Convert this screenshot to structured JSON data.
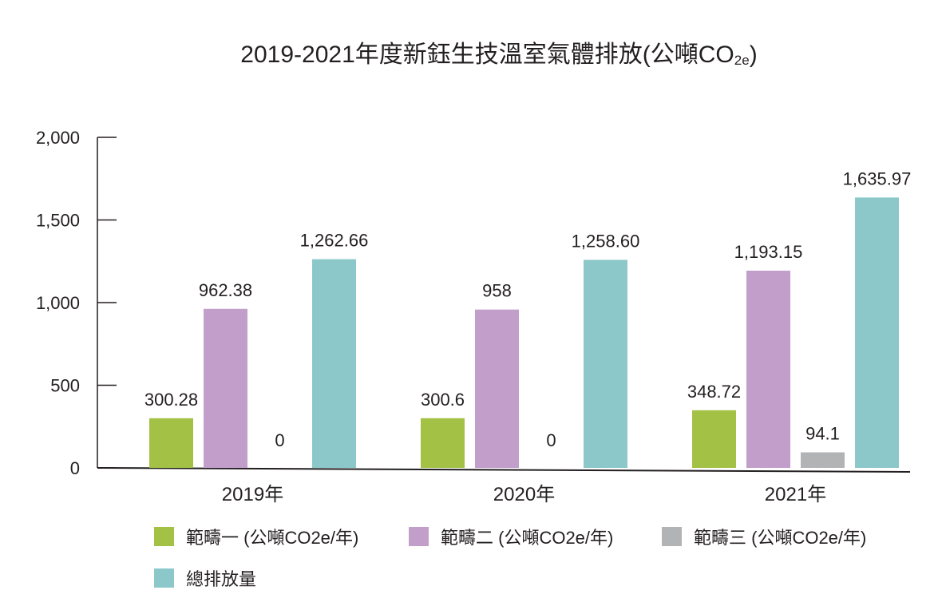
{
  "chart_data": {
    "type": "bar",
    "title_main": "2019-2021年度新鈺生技溫室氣體排放(公噸CO",
    "title_sub": "2e",
    "title_close": ")",
    "categories": [
      "2019年",
      "2020年",
      "2021年"
    ],
    "ylim": [
      0,
      2000
    ],
    "yticks": [
      0,
      500,
      1000,
      1500,
      2000
    ],
    "ytick_labels": [
      "0",
      "500",
      "1,000",
      "1,500",
      "2,000"
    ],
    "grid": false,
    "legend_position": "bottom",
    "series": [
      {
        "name": "範疇一 (公噸CO2e/年)",
        "color": "#a3c144",
        "values": [
          300.28,
          300.6,
          348.72
        ],
        "labels": [
          "300.28",
          "300.6",
          "348.72"
        ]
      },
      {
        "name": "範疇二 (公噸CO2e/年)",
        "color": "#c29fcb",
        "values": [
          962.38,
          958,
          1193.15
        ],
        "labels": [
          "962.38",
          "958",
          "1,193.15"
        ]
      },
      {
        "name": "範疇三 (公噸CO2e/年)",
        "color": "#b1b3b5",
        "values": [
          0,
          0,
          94.1
        ],
        "labels": [
          "0",
          "0",
          "94.1"
        ]
      },
      {
        "name": "總排放量",
        "color": "#8cc8c9",
        "values": [
          1262.66,
          1258.6,
          1635.97
        ],
        "labels": [
          "1,262.66",
          "1,258.60",
          "1,635.97"
        ]
      }
    ]
  }
}
